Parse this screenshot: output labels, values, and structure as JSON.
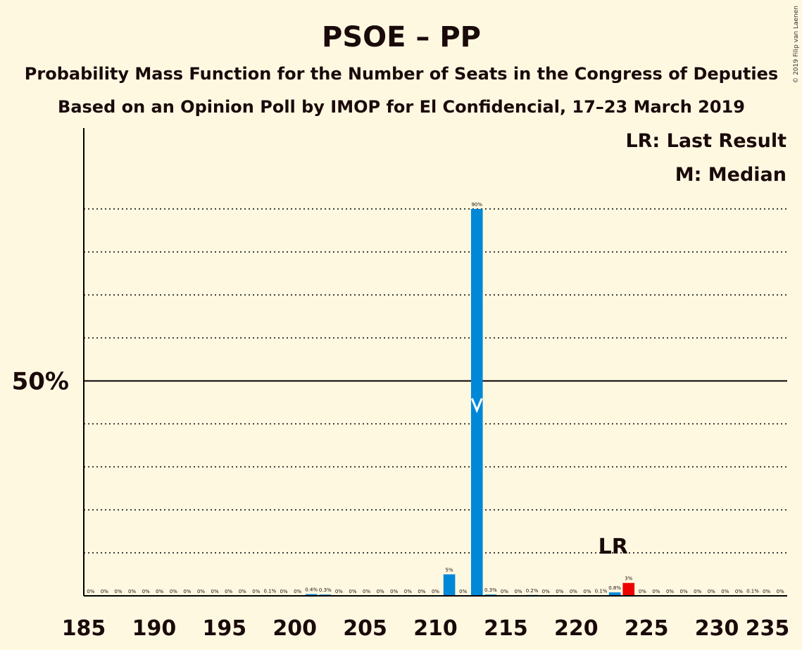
{
  "title": "PSOE – PP",
  "subtitle1": "Probability Mass Function for the Number of Seats in the Congress of Deputies",
  "subtitle2": "Based on an Opinion Poll by IMOP for El Confidencial, 17–23 March 2019",
  "legend": {
    "last_result": "LR: Last Result",
    "median": "M: Median"
  },
  "copyright": "© 2019 Filip van Laenen",
  "colors": {
    "background": "#FFF8E1",
    "bar": "#0088D8",
    "last_result_bar": "#EE0000",
    "text": "#1a0a0a"
  },
  "chart_data": {
    "type": "bar",
    "xlabel": "",
    "ylabel": "",
    "xlim": [
      185,
      235
    ],
    "ylim": [
      0,
      100
    ],
    "x_ticks": [
      185,
      190,
      195,
      200,
      205,
      210,
      215,
      220,
      225,
      230,
      235
    ],
    "y_tick_label": {
      "value": 50,
      "label": "50%"
    },
    "gridlines_percent": [
      10,
      20,
      30,
      40,
      60,
      70,
      80,
      90
    ],
    "majority_line_percent": 50,
    "median_seats": 213,
    "last_result_seats": 224,
    "last_result_label": "LR",
    "bars": [
      {
        "x": 185,
        "value": 0,
        "label": "0%"
      },
      {
        "x": 186,
        "value": 0,
        "label": "0%"
      },
      {
        "x": 187,
        "value": 0,
        "label": "0%"
      },
      {
        "x": 188,
        "value": 0,
        "label": "0%"
      },
      {
        "x": 189,
        "value": 0,
        "label": "0%"
      },
      {
        "x": 190,
        "value": 0,
        "label": "0%"
      },
      {
        "x": 191,
        "value": 0,
        "label": "0%"
      },
      {
        "x": 192,
        "value": 0,
        "label": "0%"
      },
      {
        "x": 193,
        "value": 0,
        "label": "0%"
      },
      {
        "x": 194,
        "value": 0,
        "label": "0%"
      },
      {
        "x": 195,
        "value": 0,
        "label": "0%"
      },
      {
        "x": 196,
        "value": 0,
        "label": "0%"
      },
      {
        "x": 197,
        "value": 0,
        "label": "0%"
      },
      {
        "x": 198,
        "value": 0.1,
        "label": "0.1%"
      },
      {
        "x": 199,
        "value": 0,
        "label": "0%"
      },
      {
        "x": 200,
        "value": 0,
        "label": "0%"
      },
      {
        "x": 201,
        "value": 0.4,
        "label": "0.4%"
      },
      {
        "x": 202,
        "value": 0.3,
        "label": "0.3%"
      },
      {
        "x": 203,
        "value": 0,
        "label": "0%"
      },
      {
        "x": 204,
        "value": 0,
        "label": "0%"
      },
      {
        "x": 205,
        "value": 0,
        "label": "0%"
      },
      {
        "x": 206,
        "value": 0,
        "label": "0%"
      },
      {
        "x": 207,
        "value": 0,
        "label": "0%"
      },
      {
        "x": 208,
        "value": 0,
        "label": "0%"
      },
      {
        "x": 209,
        "value": 0,
        "label": "0%"
      },
      {
        "x": 210,
        "value": 0,
        "label": "0%"
      },
      {
        "x": 211,
        "value": 5,
        "label": "5%"
      },
      {
        "x": 212,
        "value": 0,
        "label": "0%"
      },
      {
        "x": 213,
        "value": 90,
        "label": "90%"
      },
      {
        "x": 214,
        "value": 0.3,
        "label": "0.3%"
      },
      {
        "x": 215,
        "value": 0,
        "label": "0%"
      },
      {
        "x": 216,
        "value": 0,
        "label": "0%"
      },
      {
        "x": 217,
        "value": 0.2,
        "label": "0.2%"
      },
      {
        "x": 218,
        "value": 0,
        "label": "0%"
      },
      {
        "x": 219,
        "value": 0,
        "label": "0%"
      },
      {
        "x": 220,
        "value": 0,
        "label": "0%"
      },
      {
        "x": 221,
        "value": 0,
        "label": "0%"
      },
      {
        "x": 222,
        "value": 0.1,
        "label": "0.1%"
      },
      {
        "x": 223,
        "value": 0.8,
        "label": "0.8%"
      },
      {
        "x": 224,
        "value": 3,
        "label": "3%"
      },
      {
        "x": 225,
        "value": 0,
        "label": "0%"
      },
      {
        "x": 226,
        "value": 0,
        "label": "0%"
      },
      {
        "x": 227,
        "value": 0,
        "label": "0%"
      },
      {
        "x": 228,
        "value": 0,
        "label": "0%"
      },
      {
        "x": 229,
        "value": 0,
        "label": "0%"
      },
      {
        "x": 230,
        "value": 0,
        "label": "0%"
      },
      {
        "x": 231,
        "value": 0,
        "label": "0%"
      },
      {
        "x": 232,
        "value": 0,
        "label": "0%"
      },
      {
        "x": 233,
        "value": 0.1,
        "label": "0.1%"
      },
      {
        "x": 234,
        "value": 0,
        "label": "0%"
      },
      {
        "x": 235,
        "value": 0,
        "label": "0%"
      }
    ]
  }
}
